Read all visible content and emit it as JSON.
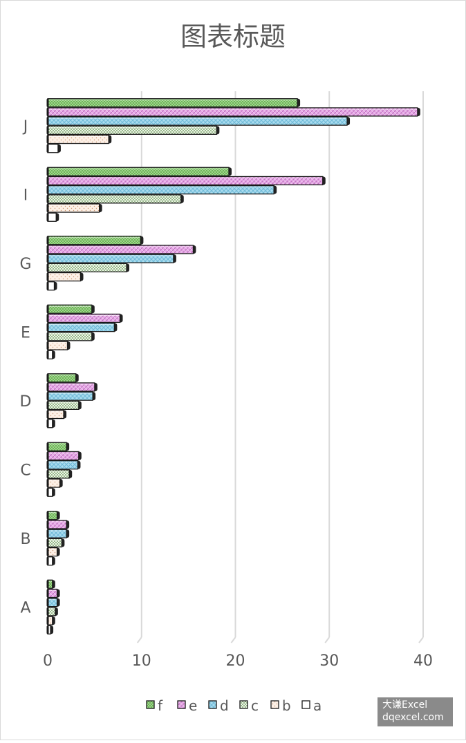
{
  "chart_data": {
    "type": "bar",
    "orientation": "horizontal",
    "title": "图表标题",
    "categories": [
      "A",
      "B",
      "C",
      "D",
      "E",
      "G",
      "I",
      "J"
    ],
    "series": [
      {
        "name": "f",
        "values": [
          0.5,
          1,
          2,
          3,
          4.7,
          9.9,
          19.3,
          26.6
        ]
      },
      {
        "name": "e",
        "values": [
          1,
          2,
          3.3,
          5,
          7.7,
          15.5,
          29.3,
          39.4
        ]
      },
      {
        "name": "d",
        "values": [
          1,
          2,
          3.2,
          4.8,
          7.1,
          13.4,
          24.1,
          31.9
        ]
      },
      {
        "name": "c",
        "values": [
          0.8,
          1.5,
          2.3,
          3.3,
          4.7,
          8.4,
          14.2,
          18
        ]
      },
      {
        "name": "b",
        "values": [
          0.5,
          1,
          1.3,
          1.7,
          2.1,
          3.5,
          5.5,
          6.5
        ]
      },
      {
        "name": "a",
        "values": [
          0.3,
          0.5,
          0.5,
          0.5,
          0.5,
          0.7,
          0.9,
          1.1
        ]
      }
    ],
    "xlim": [
      0,
      40
    ],
    "xticks": [
      "0",
      "10",
      "20",
      "30",
      "40"
    ],
    "grid": true,
    "legend_position": "bottom",
    "colors": {
      "f": "#9fd68c",
      "e": "#e6a8e6",
      "d": "#a9dcef",
      "c": "#d7ecc8",
      "b": "#fbe5d3",
      "a": "#ffffff"
    }
  },
  "watermark": {
    "line1": "大谦Excel",
    "line2": "dqexcel.com"
  }
}
